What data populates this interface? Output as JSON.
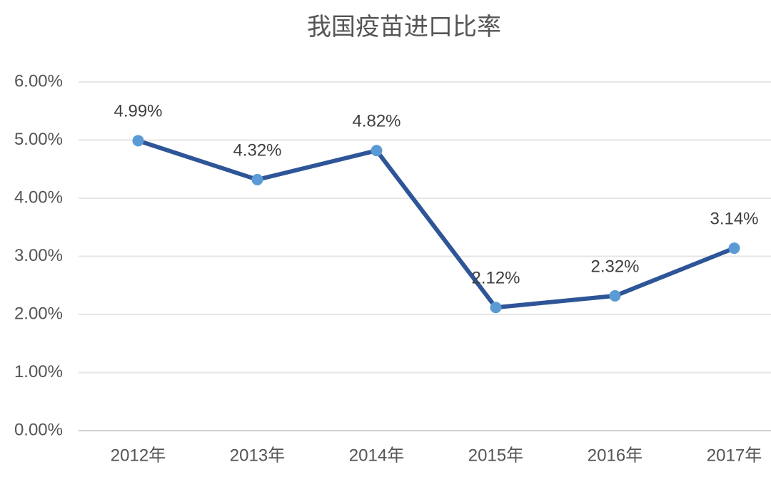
{
  "chart_data": {
    "type": "line",
    "title": "我国疫苗进口比率",
    "categories": [
      "2012年",
      "2013年",
      "2014年",
      "2015年",
      "2016年",
      "2017年"
    ],
    "series": [
      {
        "color": "#2e5597",
        "marker_color": "#5b9bd5",
        "values": [
          4.99,
          4.32,
          4.82,
          2.12,
          2.32,
          3.14
        ],
        "value_labels": [
          "4.99%",
          "4.32%",
          "4.82%",
          "2.12%",
          "2.32%",
          "3.14%"
        ]
      }
    ],
    "ylim": [
      0,
      6
    ],
    "yticks": [
      {
        "value": 0,
        "label": "0.00%"
      },
      {
        "value": 1,
        "label": "1.00%"
      },
      {
        "value": 2,
        "label": "2.00%"
      },
      {
        "value": 3,
        "label": "3.00%"
      },
      {
        "value": 4,
        "label": "4.00%"
      },
      {
        "value": 5,
        "label": "5.00%"
      },
      {
        "value": 6,
        "label": "6.00%"
      }
    ],
    "grid": true
  }
}
